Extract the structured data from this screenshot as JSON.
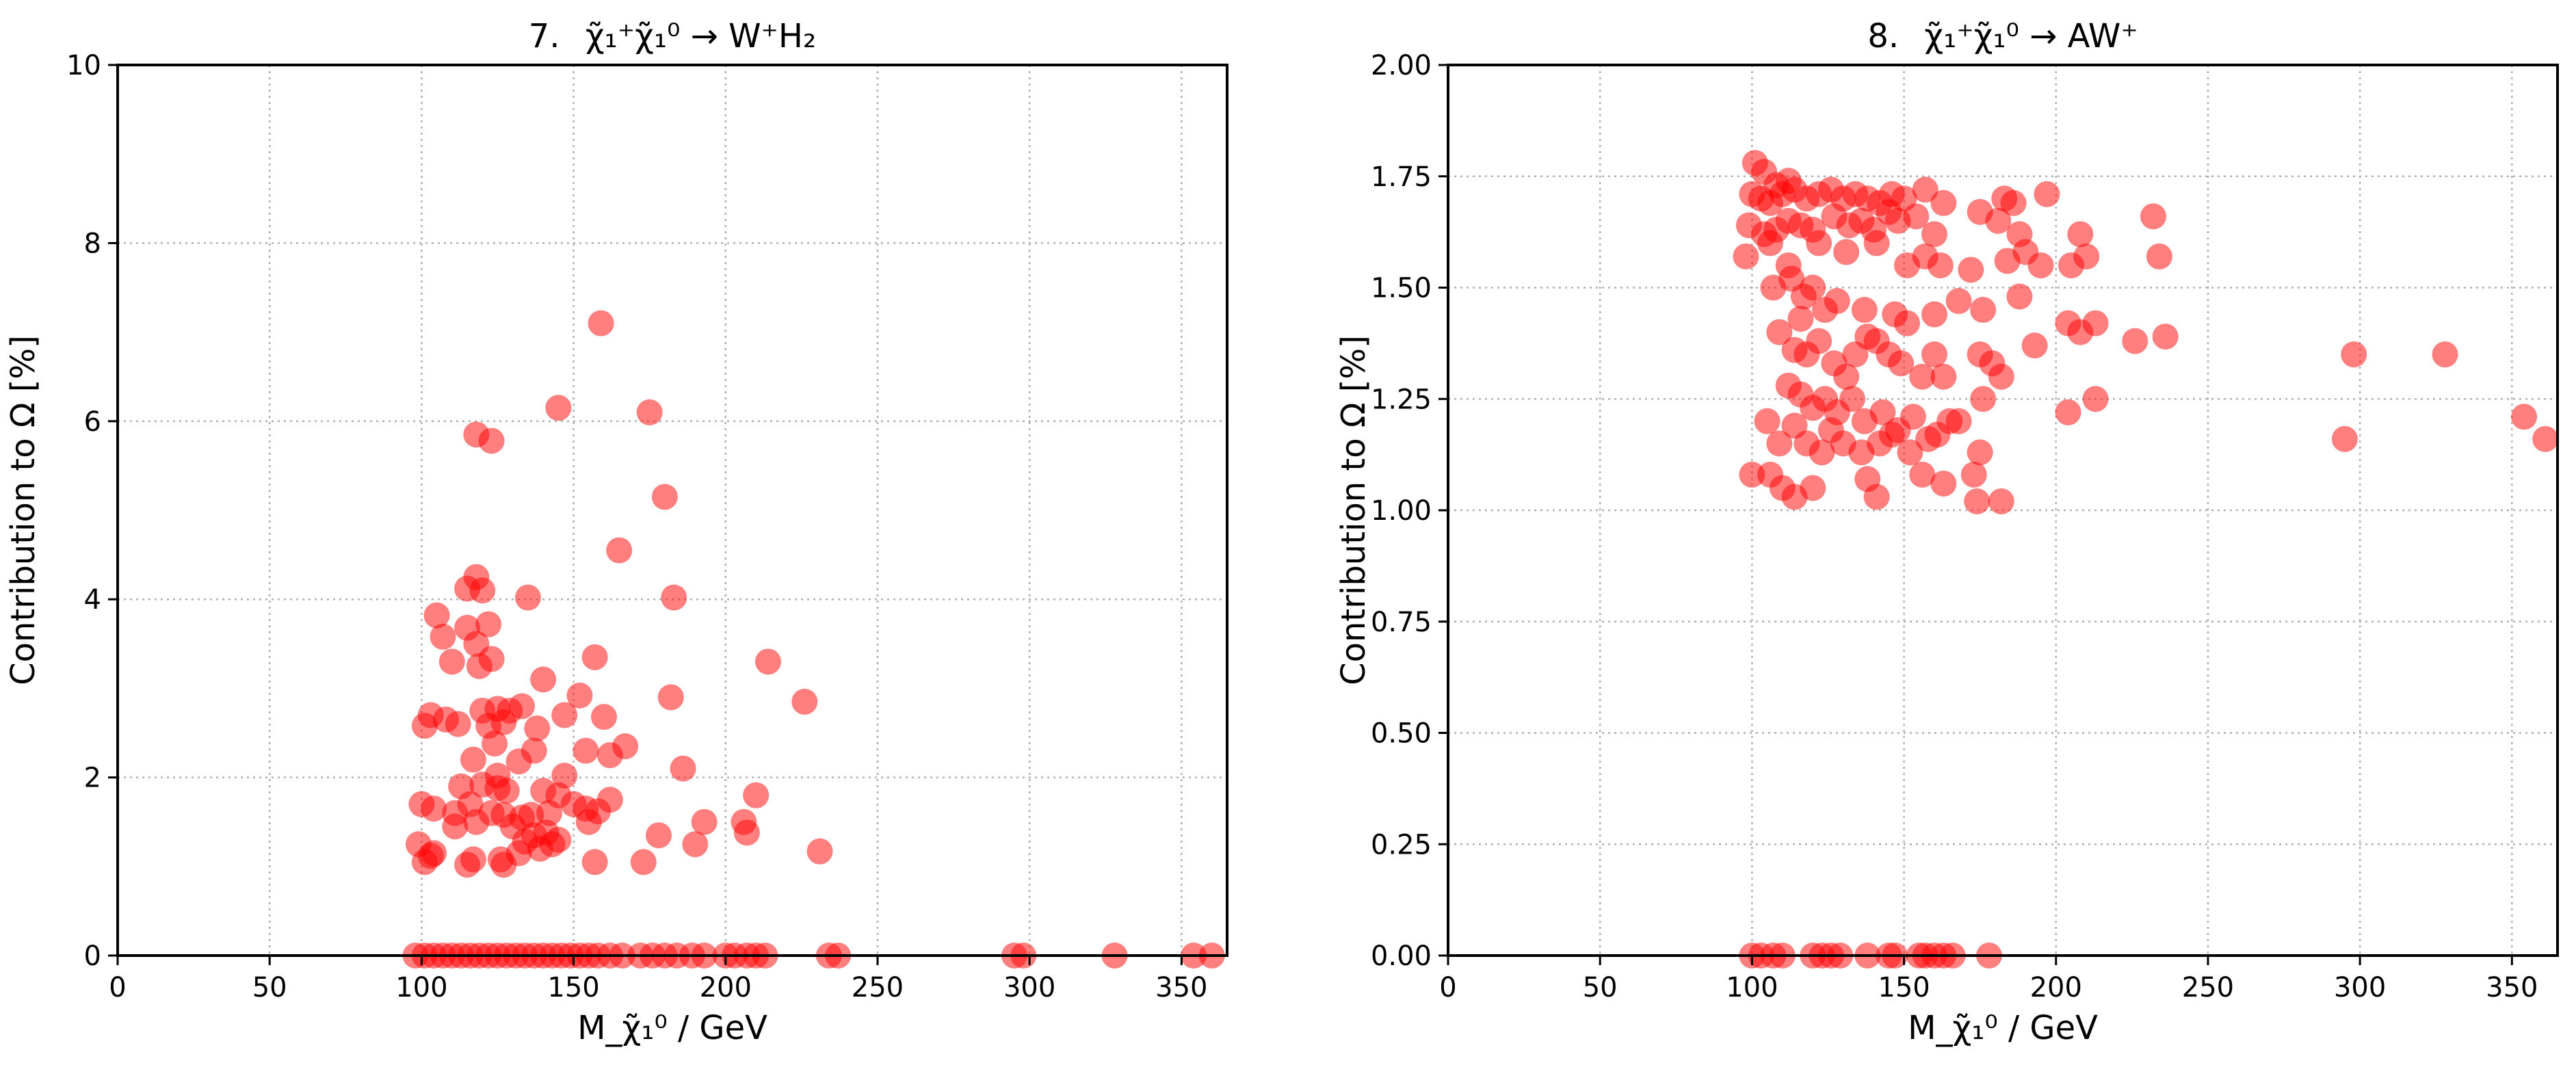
{
  "chart_data": [
    {
      "type": "scatter",
      "title_prefix": "7.",
      "title_formula": "χ̃₁⁺χ̃₁⁰ → W⁺H₂",
      "xlabel": "M_χ̃₁⁰ / GeV",
      "ylabel": "Contribution to Ω [%]",
      "xlim": [
        0,
        365
      ],
      "ylim": [
        0,
        10
      ],
      "xticks": [
        0,
        50,
        100,
        150,
        200,
        250,
        300,
        350
      ],
      "yticks": [
        0,
        2,
        4,
        6,
        8,
        10
      ],
      "ytick_labels": [
        "0",
        "2",
        "4",
        "6",
        "8",
        "10"
      ],
      "grid": true,
      "color": "#ff0000",
      "points": [
        [
          159,
          7.1
        ],
        [
          145,
          6.15
        ],
        [
          175,
          6.1
        ],
        [
          118,
          5.85
        ],
        [
          123,
          5.78
        ],
        [
          180,
          5.15
        ],
        [
          165,
          4.55
        ],
        [
          118,
          4.25
        ],
        [
          115,
          4.12
        ],
        [
          120,
          4.1
        ],
        [
          135,
          4.02
        ],
        [
          183,
          4.02
        ],
        [
          105,
          3.82
        ],
        [
          115,
          3.68
        ],
        [
          122,
          3.72
        ],
        [
          107,
          3.58
        ],
        [
          118,
          3.5
        ],
        [
          123,
          3.33
        ],
        [
          119,
          3.25
        ],
        [
          110,
          3.3
        ],
        [
          157,
          3.35
        ],
        [
          214,
          3.3
        ],
        [
          140,
          3.1
        ],
        [
          152,
          2.92
        ],
        [
          182,
          2.9
        ],
        [
          226,
          2.85
        ],
        [
          120,
          2.75
        ],
        [
          125,
          2.77
        ],
        [
          129,
          2.75
        ],
        [
          133,
          2.8
        ],
        [
          103,
          2.7
        ],
        [
          108,
          2.65
        ],
        [
          112,
          2.6
        ],
        [
          122,
          2.58
        ],
        [
          127,
          2.62
        ],
        [
          101,
          2.58
        ],
        [
          147,
          2.7
        ],
        [
          160,
          2.68
        ],
        [
          138,
          2.55
        ],
        [
          124,
          2.38
        ],
        [
          137,
          2.3
        ],
        [
          154,
          2.3
        ],
        [
          167,
          2.35
        ],
        [
          162,
          2.25
        ],
        [
          186,
          2.1
        ],
        [
          117,
          2.2
        ],
        [
          125,
          2.02
        ],
        [
          132,
          2.18
        ],
        [
          147,
          2.02
        ],
        [
          113,
          1.9
        ],
        [
          120,
          1.92
        ],
        [
          125,
          1.88
        ],
        [
          128,
          1.85
        ],
        [
          140,
          1.85
        ],
        [
          145,
          1.8
        ],
        [
          162,
          1.75
        ],
        [
          210,
          1.8
        ],
        [
          100,
          1.7
        ],
        [
          104,
          1.65
        ],
        [
          116,
          1.7
        ],
        [
          123,
          1.6
        ],
        [
          127,
          1.58
        ],
        [
          133,
          1.55
        ],
        [
          142,
          1.6
        ],
        [
          150,
          1.7
        ],
        [
          154,
          1.65
        ],
        [
          158,
          1.62
        ],
        [
          111,
          1.6
        ],
        [
          130,
          1.45
        ],
        [
          137,
          1.35
        ],
        [
          141,
          1.38
        ],
        [
          145,
          1.3
        ],
        [
          134,
          1.28
        ],
        [
          155,
          1.5
        ],
        [
          178,
          1.35
        ],
        [
          193,
          1.5
        ],
        [
          206,
          1.5
        ],
        [
          207,
          1.38
        ],
        [
          99,
          1.25
        ],
        [
          104,
          1.15
        ],
        [
          103,
          1.12
        ],
        [
          101,
          1.05
        ],
        [
          117,
          1.08
        ],
        [
          115,
          1.02
        ],
        [
          126,
          1.08
        ],
        [
          132,
          1.15
        ],
        [
          139,
          1.2
        ],
        [
          143,
          1.25
        ],
        [
          127,
          1.02
        ],
        [
          157,
          1.05
        ],
        [
          173,
          1.05
        ],
        [
          190,
          1.25
        ],
        [
          231,
          1.17
        ],
        [
          111,
          1.45
        ],
        [
          118,
          1.5
        ],
        [
          136,
          1.58
        ],
        [
          98,
          0
        ],
        [
          101,
          0
        ],
        [
          104,
          0
        ],
        [
          107,
          0
        ],
        [
          110,
          0
        ],
        [
          113,
          0
        ],
        [
          116,
          0
        ],
        [
          119,
          0
        ],
        [
          122,
          0
        ],
        [
          125,
          0
        ],
        [
          128,
          0
        ],
        [
          131,
          0
        ],
        [
          134,
          0
        ],
        [
          137,
          0
        ],
        [
          140,
          0
        ],
        [
          143,
          0
        ],
        [
          146,
          0
        ],
        [
          149,
          0
        ],
        [
          152,
          0
        ],
        [
          155,
          0
        ],
        [
          158,
          0
        ],
        [
          162,
          0
        ],
        [
          166,
          0
        ],
        [
          172,
          0
        ],
        [
          176,
          0
        ],
        [
          180,
          0
        ],
        [
          184,
          0
        ],
        [
          189,
          0
        ],
        [
          193,
          0
        ],
        [
          200,
          0
        ],
        [
          203,
          0
        ],
        [
          207,
          0
        ],
        [
          210,
          0
        ],
        [
          213,
          0
        ],
        [
          234,
          0
        ],
        [
          237,
          0
        ],
        [
          295,
          0
        ],
        [
          298,
          0
        ],
        [
          328,
          0
        ],
        [
          354,
          0
        ],
        [
          360,
          0
        ]
      ]
    },
    {
      "type": "scatter",
      "title_prefix": "8.",
      "title_formula": "χ̃₁⁺χ̃₁⁰ → AW⁺",
      "xlabel": "M_χ̃₁⁰ / GeV",
      "ylabel": "Contribution to Ω [%]",
      "xlim": [
        0,
        365
      ],
      "ylim": [
        0,
        2
      ],
      "xticks": [
        0,
        50,
        100,
        150,
        200,
        250,
        300,
        350
      ],
      "yticks": [
        0,
        0.25,
        0.5,
        0.75,
        1.0,
        1.25,
        1.5,
        1.75,
        2.0
      ],
      "ytick_labels": [
        "0.00",
        "0.25",
        "0.50",
        "0.75",
        "1.00",
        "1.25",
        "1.50",
        "1.75",
        "2.00"
      ],
      "grid": true,
      "color": "#ff0000",
      "points": [
        [
          101,
          1.78
        ],
        [
          104,
          1.76
        ],
        [
          108,
          1.73
        ],
        [
          112,
          1.74
        ],
        [
          100,
          1.71
        ],
        [
          103,
          1.7
        ],
        [
          106,
          1.69
        ],
        [
          110,
          1.71
        ],
        [
          114,
          1.72
        ],
        [
          118,
          1.7
        ],
        [
          122,
          1.71
        ],
        [
          126,
          1.72
        ],
        [
          130,
          1.7
        ],
        [
          134,
          1.71
        ],
        [
          138,
          1.7
        ],
        [
          142,
          1.69
        ],
        [
          146,
          1.71
        ],
        [
          150,
          1.7
        ],
        [
          157,
          1.72
        ],
        [
          163,
          1.69
        ],
        [
          145,
          1.67
        ],
        [
          99,
          1.64
        ],
        [
          104,
          1.62
        ],
        [
          108,
          1.63
        ],
        [
          112,
          1.65
        ],
        [
          116,
          1.64
        ],
        [
          120,
          1.63
        ],
        [
          127,
          1.66
        ],
        [
          132,
          1.64
        ],
        [
          136,
          1.65
        ],
        [
          140,
          1.63
        ],
        [
          148,
          1.65
        ],
        [
          154,
          1.66
        ],
        [
          160,
          1.62
        ],
        [
          175,
          1.67
        ],
        [
          183,
          1.7
        ],
        [
          186,
          1.69
        ],
        [
          197,
          1.71
        ],
        [
          98,
          1.57
        ],
        [
          106,
          1.6
        ],
        [
          112,
          1.55
        ],
        [
          122,
          1.6
        ],
        [
          131,
          1.58
        ],
        [
          141,
          1.6
        ],
        [
          151,
          1.55
        ],
        [
          157,
          1.57
        ],
        [
          162,
          1.55
        ],
        [
          181,
          1.65
        ],
        [
          188,
          1.62
        ],
        [
          208,
          1.62
        ],
        [
          232,
          1.66
        ],
        [
          107,
          1.5
        ],
        [
          113,
          1.52
        ],
        [
          117,
          1.48
        ],
        [
          120,
          1.5
        ],
        [
          116,
          1.43
        ],
        [
          124,
          1.45
        ],
        [
          128,
          1.47
        ],
        [
          137,
          1.45
        ],
        [
          147,
          1.44
        ],
        [
          151,
          1.42
        ],
        [
          160,
          1.44
        ],
        [
          168,
          1.47
        ],
        [
          172,
          1.54
        ],
        [
          176,
          1.45
        ],
        [
          184,
          1.56
        ],
        [
          190,
          1.58
        ],
        [
          195,
          1.55
        ],
        [
          205,
          1.55
        ],
        [
          210,
          1.57
        ],
        [
          234,
          1.57
        ],
        [
          109,
          1.4
        ],
        [
          114,
          1.36
        ],
        [
          118,
          1.35
        ],
        [
          122,
          1.38
        ],
        [
          127,
          1.33
        ],
        [
          131,
          1.3
        ],
        [
          134,
          1.35
        ],
        [
          138,
          1.39
        ],
        [
          141,
          1.38
        ],
        [
          145,
          1.35
        ],
        [
          149,
          1.33
        ],
        [
          156,
          1.3
        ],
        [
          160,
          1.35
        ],
        [
          163,
          1.3
        ],
        [
          175,
          1.35
        ],
        [
          179,
          1.33
        ],
        [
          188,
          1.48
        ],
        [
          193,
          1.37
        ],
        [
          204,
          1.42
        ],
        [
          208,
          1.4
        ],
        [
          213,
          1.42
        ],
        [
          226,
          1.38
        ],
        [
          236,
          1.39
        ],
        [
          298,
          1.35
        ],
        [
          328,
          1.35
        ],
        [
          112,
          1.28
        ],
        [
          116,
          1.26
        ],
        [
          120,
          1.23
        ],
        [
          124,
          1.25
        ],
        [
          128,
          1.22
        ],
        [
          133,
          1.25
        ],
        [
          137,
          1.2
        ],
        [
          143,
          1.22
        ],
        [
          148,
          1.18
        ],
        [
          153,
          1.21
        ],
        [
          161,
          1.17
        ],
        [
          168,
          1.2
        ],
        [
          176,
          1.25
        ],
        [
          182,
          1.3
        ],
        [
          204,
          1.22
        ],
        [
          213,
          1.25
        ],
        [
          105,
          1.2
        ],
        [
          109,
          1.15
        ],
        [
          114,
          1.19
        ],
        [
          118,
          1.15
        ],
        [
          123,
          1.13
        ],
        [
          126,
          1.18
        ],
        [
          130,
          1.15
        ],
        [
          136,
          1.13
        ],
        [
          142,
          1.15
        ],
        [
          146,
          1.17
        ],
        [
          152,
          1.13
        ],
        [
          158,
          1.16
        ],
        [
          165,
          1.2
        ],
        [
          173,
          1.08
        ],
        [
          175,
          1.13
        ],
        [
          106,
          1.08
        ],
        [
          110,
          1.05
        ],
        [
          114,
          1.03
        ],
        [
          100,
          1.08
        ],
        [
          120,
          1.05
        ],
        [
          138,
          1.07
        ],
        [
          141,
          1.03
        ],
        [
          156,
          1.08
        ],
        [
          163,
          1.06
        ],
        [
          174,
          1.02
        ],
        [
          182,
          1.02
        ],
        [
          295,
          1.16
        ],
        [
          354,
          1.21
        ],
        [
          361,
          1.16
        ],
        [
          100,
          0
        ],
        [
          103,
          0
        ],
        [
          107,
          0
        ],
        [
          110,
          0
        ],
        [
          120,
          0
        ],
        [
          123,
          0
        ],
        [
          126,
          0
        ],
        [
          129,
          0
        ],
        [
          138,
          0
        ],
        [
          145,
          0
        ],
        [
          147,
          0
        ],
        [
          155,
          0
        ],
        [
          157,
          0
        ],
        [
          160,
          0
        ],
        [
          163,
          0
        ],
        [
          166,
          0
        ],
        [
          178,
          0
        ]
      ]
    }
  ]
}
